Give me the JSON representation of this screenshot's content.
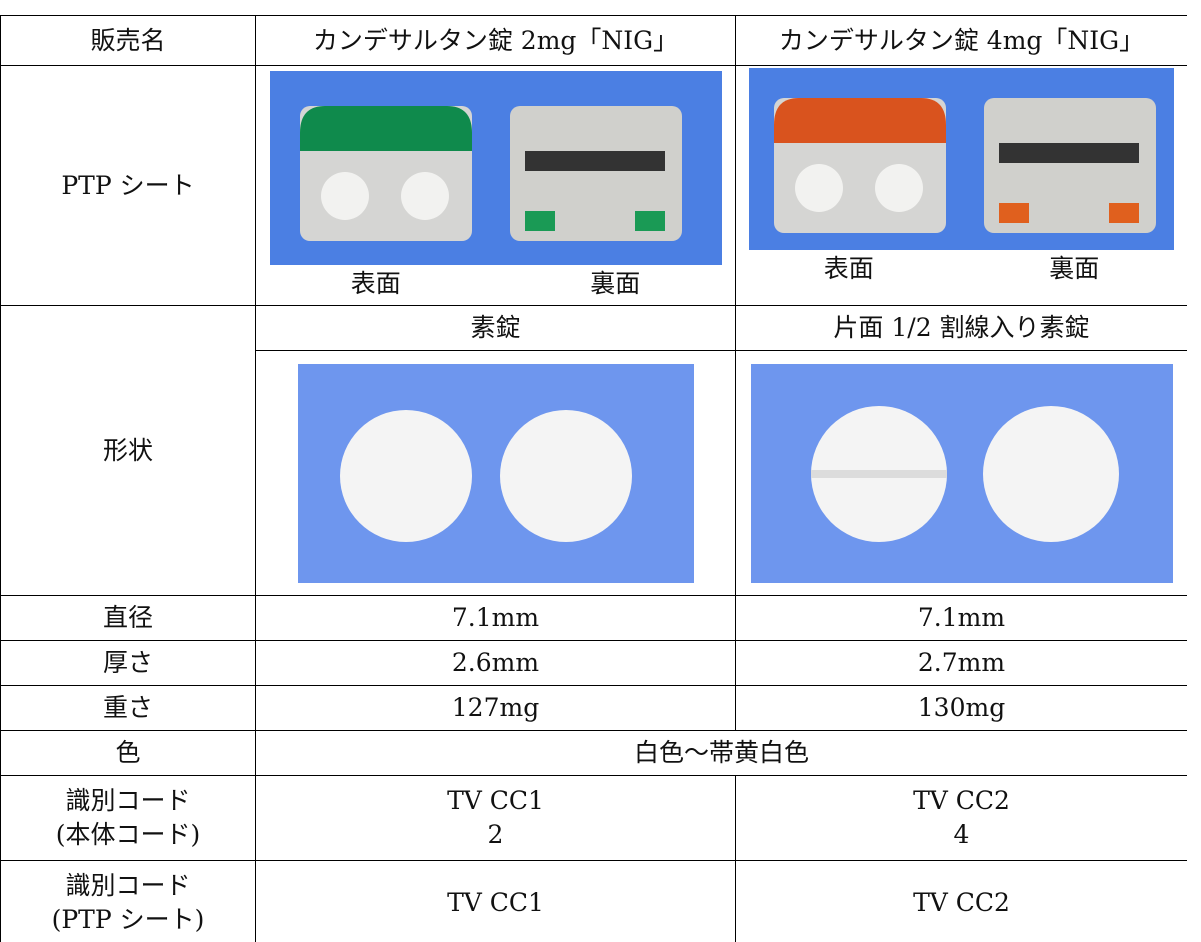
{
  "table": {
    "header": [
      "販売名",
      "カンデサルタン錠 2mg「NIG」",
      "カンデサルタン錠 4mg「NIG」"
    ],
    "ptp_sheet": {
      "label": "PTP シート",
      "captions": [
        [
          "表面",
          "裏面"
        ],
        [
          "表面",
          "裏面"
        ]
      ]
    },
    "shape": {
      "label": "形状",
      "types": [
        "素錠",
        "片面 1/2 割線入り素錠"
      ]
    },
    "diameter": {
      "label": "直径",
      "values": [
        "7.1mm",
        "7.1mm"
      ]
    },
    "thickness": {
      "label": "厚さ",
      "values": [
        "2.6mm",
        "2.7mm"
      ]
    },
    "weight": {
      "label": "重さ",
      "values": [
        "127mg",
        "130mg"
      ]
    },
    "color": {
      "label": "色",
      "value": "白色～帯黄白色"
    },
    "body_code": {
      "label": [
        "識別コード",
        "(本体コード)"
      ],
      "values": [
        [
          "TV CC1",
          "2"
        ],
        [
          "TV CC2",
          "4"
        ]
      ]
    },
    "ptp_code": {
      "label": [
        "識別コード",
        "(PTP シート)"
      ],
      "values": [
        "TV CC1",
        "TV CC2"
      ]
    }
  }
}
